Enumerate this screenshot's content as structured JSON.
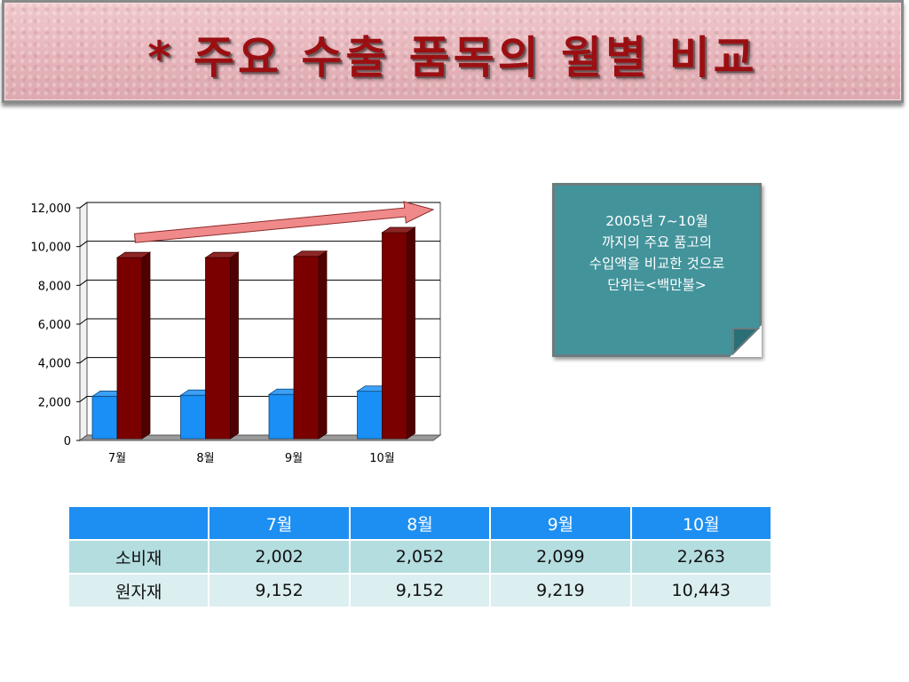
{
  "slide": {
    "title": "* 주요 수출 품목의 월별 비교"
  },
  "note": {
    "lines": [
      "2005년 7~10월",
      "까지의 주요 품고의",
      "수입액을 비교한 것으로",
      "단위는<백만불>"
    ]
  },
  "chart_data": {
    "type": "bar",
    "categories": [
      "7월",
      "8월",
      "9월",
      "10월"
    ],
    "series": [
      {
        "values": [
          2002,
          2052,
          2099,
          2263
        ],
        "color": "#1a8ff5"
      },
      {
        "values": [
          9152,
          9152,
          9219,
          10443
        ],
        "color": "#7a0000"
      }
    ],
    "ylim": [
      0,
      12000
    ],
    "yticks": [
      "0",
      "2,000",
      "4,000",
      "6,000",
      "8,000",
      "10,000",
      "12,000"
    ],
    "grid": true,
    "trend_arrow": true,
    "arrow_color": "#f08a8a"
  },
  "table": {
    "headers": [
      "",
      "7월",
      "8월",
      "9월",
      "10월"
    ],
    "rows": [
      {
        "label": "소비재",
        "values": [
          "2,002",
          "2,052",
          "2,099",
          "2,263"
        ]
      },
      {
        "label": "원자재",
        "values": [
          "9,152",
          "9,152",
          "9,219",
          "10,443"
        ]
      }
    ]
  }
}
